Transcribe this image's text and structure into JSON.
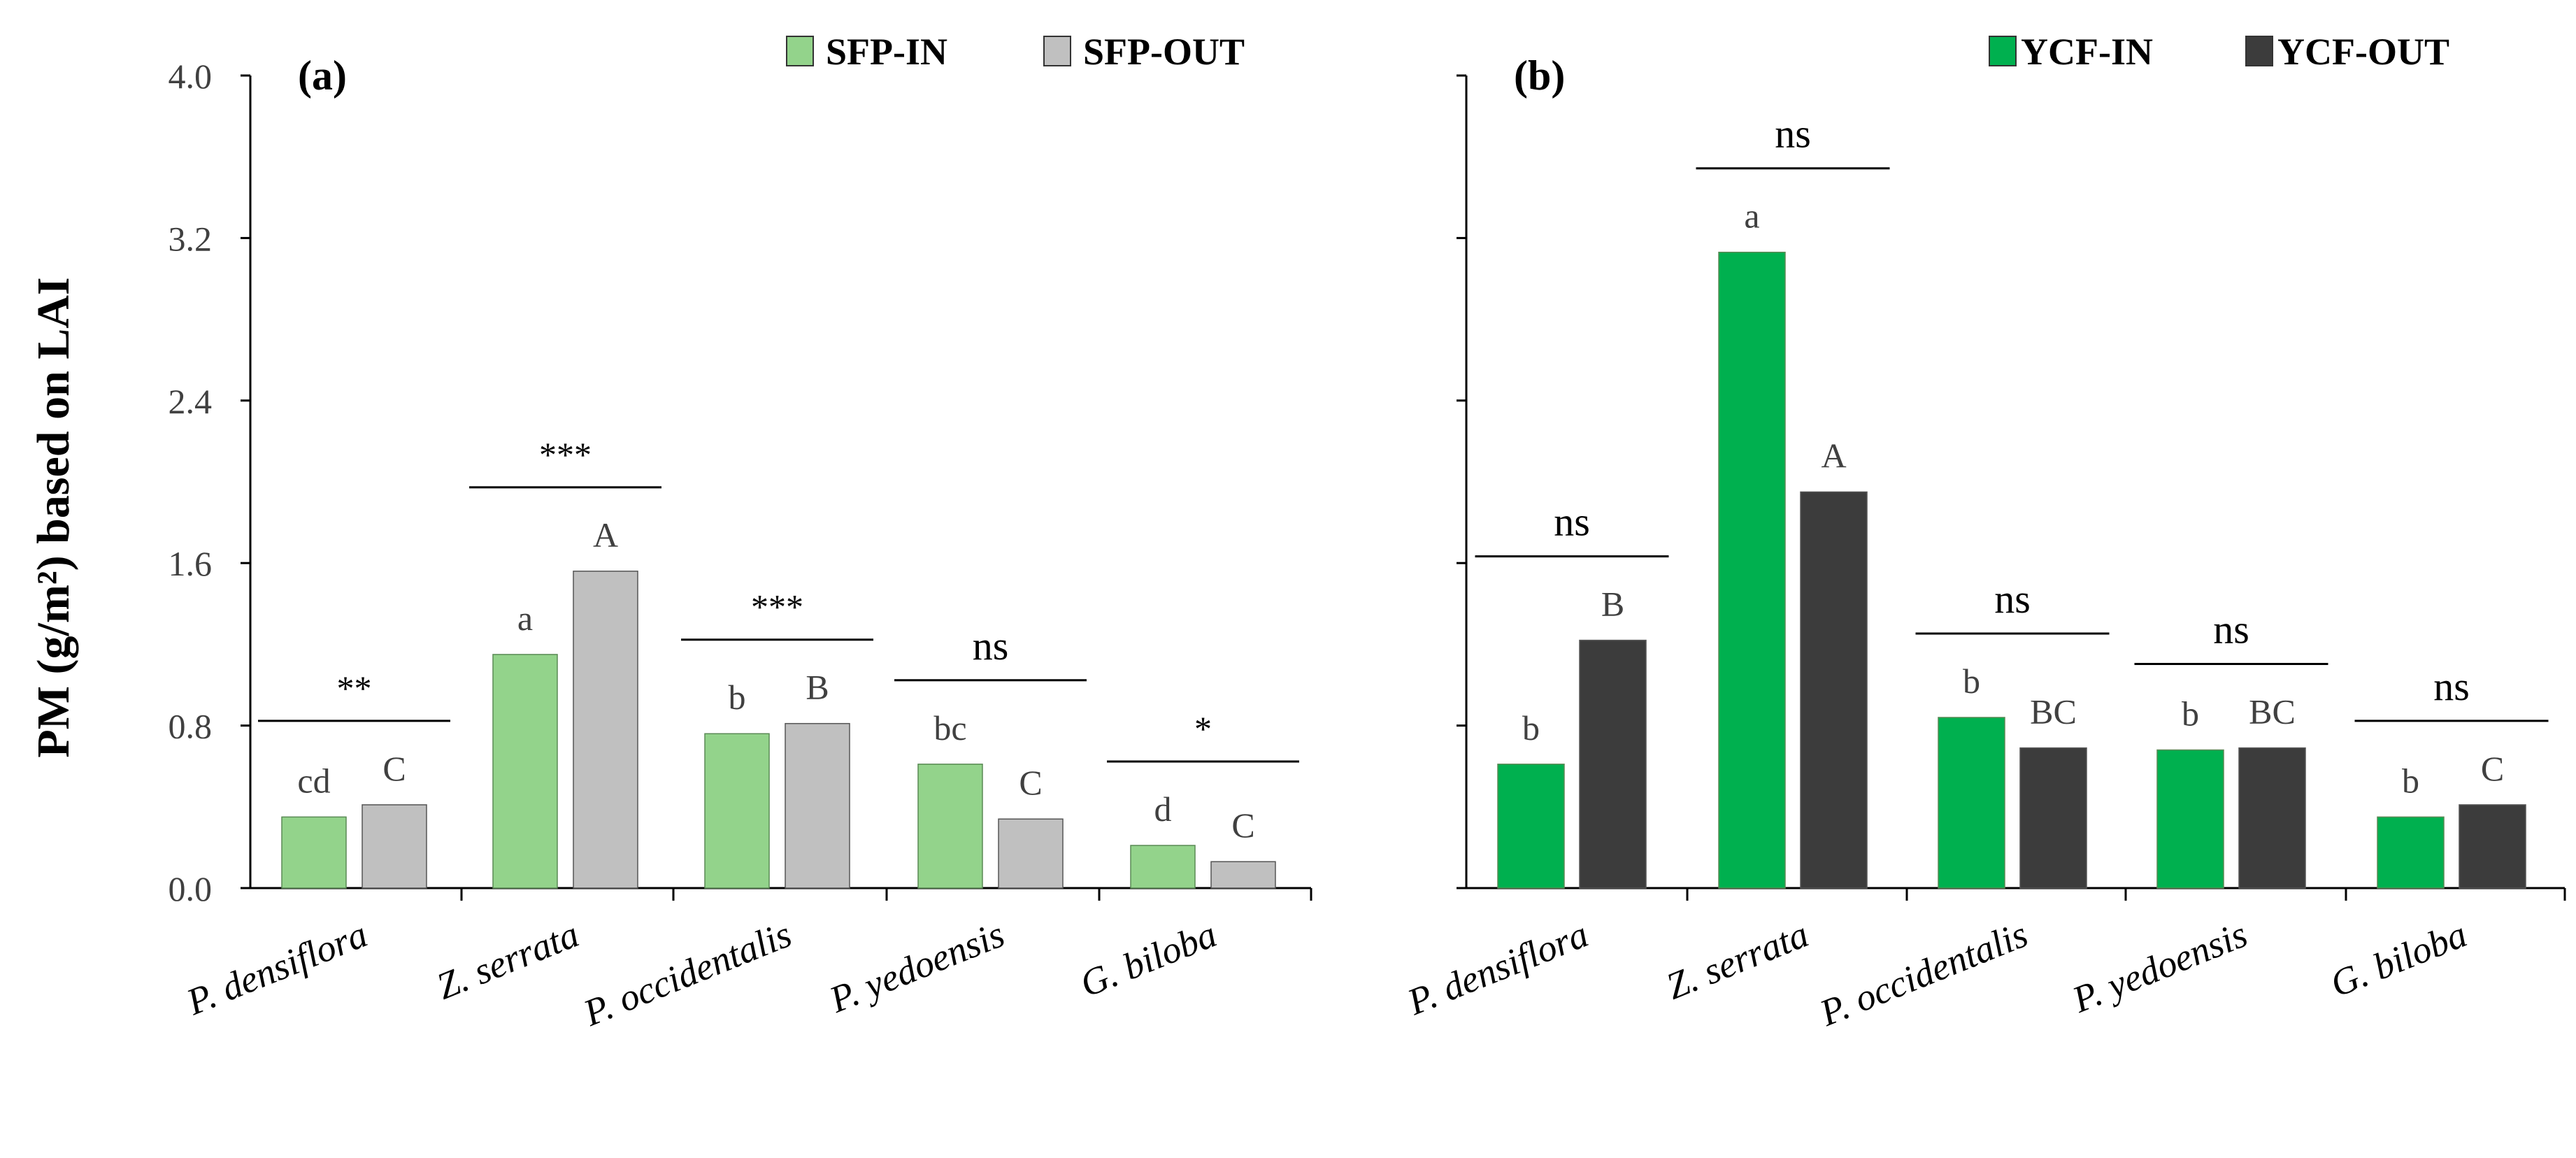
{
  "y_axis_label": "PM (g/m²) based on LAI",
  "chart_data": [
    {
      "type": "bar",
      "panel_label": "(a)",
      "ylabel": "PM (g/m²) based on LAI",
      "ylim": [
        0,
        4.0
      ],
      "yticks": [
        "0.0",
        "0.8",
        "1.6",
        "2.4",
        "3.2",
        "4.0"
      ],
      "categories": [
        "P. densiflora",
        "Z. serrata",
        "P. occidentalis",
        "P. yedoensis",
        "G. biloba"
      ],
      "series": [
        {
          "name": "SFP-IN",
          "color": "#93d38b",
          "values": [
            0.35,
            1.15,
            0.76,
            0.61,
            0.21
          ],
          "letters": [
            "cd",
            "a",
            "b",
            "bc",
            "d"
          ]
        },
        {
          "name": "SFP-OUT",
          "color": "#c0c0c0",
          "values": [
            0.41,
            1.56,
            0.81,
            0.34,
            0.13
          ],
          "letters": [
            "C",
            "A",
            "B",
            "C",
            "C"
          ]
        }
      ],
      "significance": [
        "**",
        "***",
        "***",
        "ns",
        "*"
      ],
      "legend_position": "top-right"
    },
    {
      "type": "bar",
      "panel_label": "(b)",
      "ylim": [
        0,
        4.0
      ],
      "categories": [
        "P. densiflora",
        "Z. serrata",
        "P. occidentalis",
        "P. yedoensis",
        "G. biloba"
      ],
      "series": [
        {
          "name": "YCF-IN",
          "color": "#00b04f",
          "values": [
            0.61,
            3.13,
            0.84,
            0.68,
            0.35
          ],
          "letters": [
            "b",
            "a",
            "b",
            "b",
            "b"
          ]
        },
        {
          "name": "YCF-OUT",
          "color": "#3c3c3c",
          "values": [
            1.22,
            1.95,
            0.69,
            0.69,
            0.41
          ],
          "letters": [
            "B",
            "A",
            "BC",
            "BC",
            "C"
          ]
        }
      ],
      "significance": [
        "ns",
        "ns",
        "ns",
        "ns",
        "ns"
      ],
      "legend_position": "top-right"
    }
  ]
}
